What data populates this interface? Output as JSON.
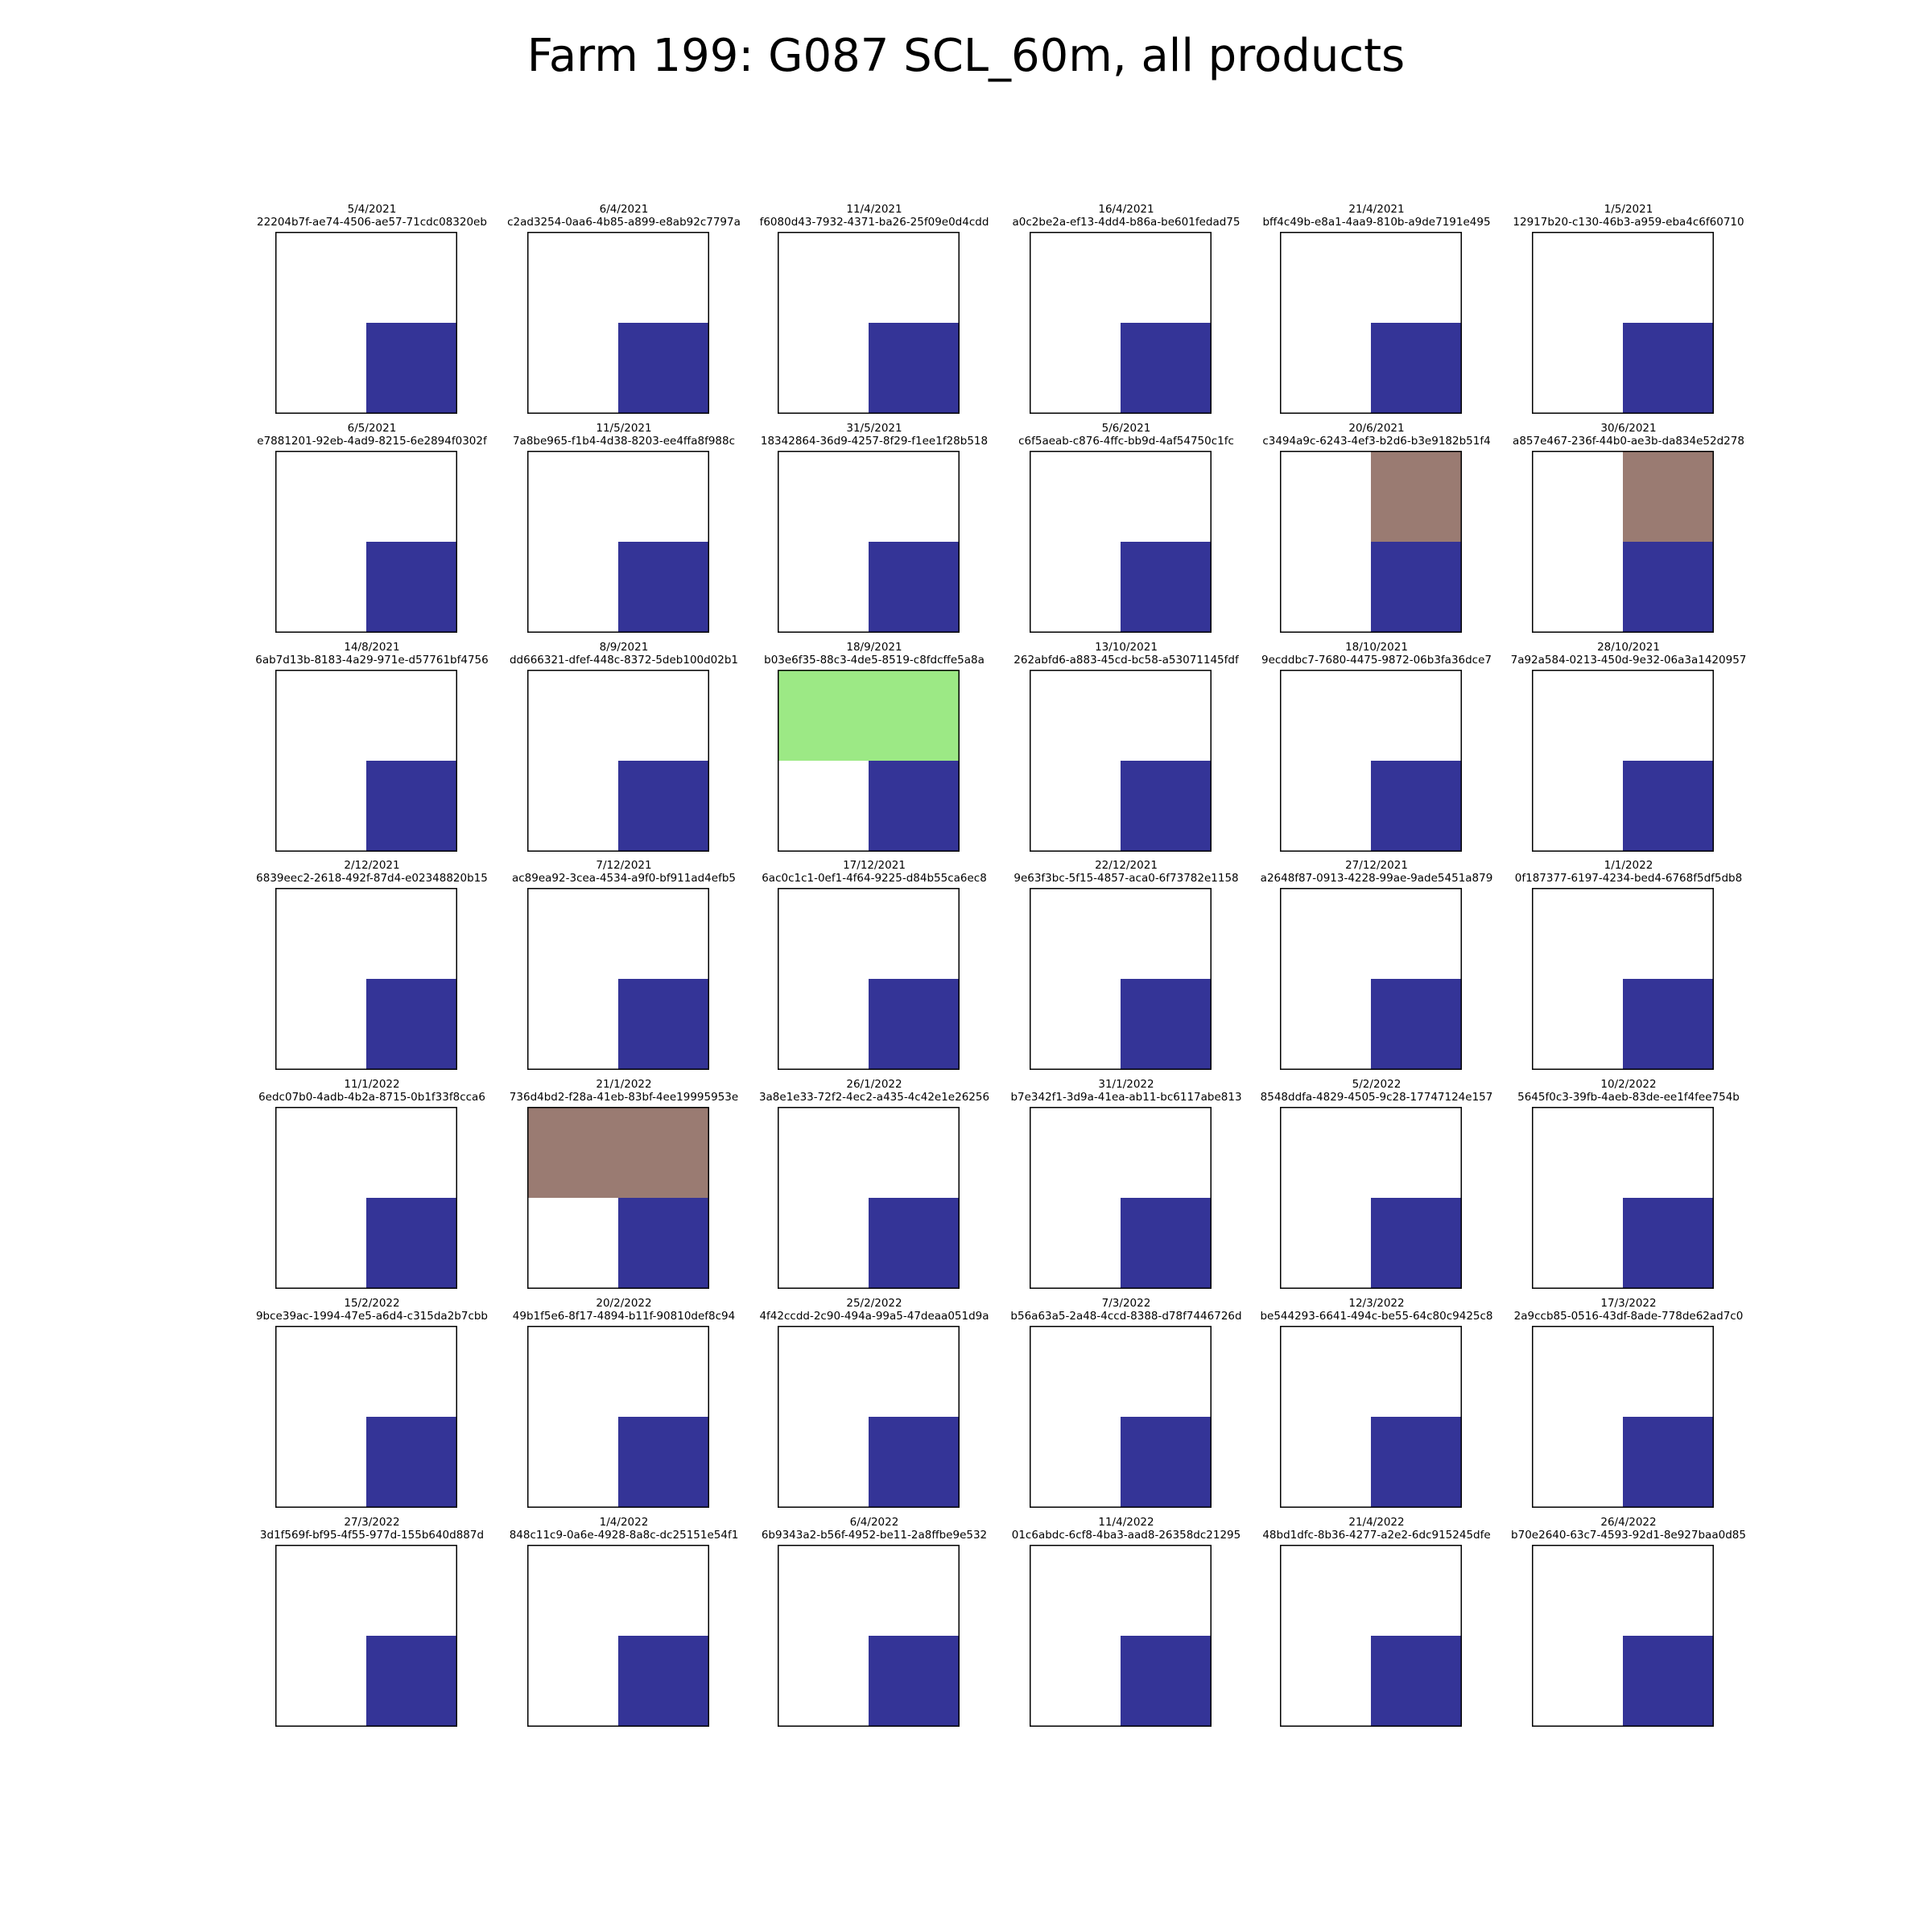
{
  "title": "Farm 199: G087 SCL_60m, all products",
  "legend": {
    "colors": {
      "water": "#343497",
      "bare_soil": "#9a7b72",
      "vegetation": "#9ce985",
      "unfilled": "#ffffff"
    }
  },
  "chart_data": {
    "type": "heatmap",
    "grid_rows": 2,
    "grid_cols": 2,
    "panels": [
      {
        "date": "5/4/2021",
        "id": "22204b7f-ae74-4506-ae57-71cdc08320eb",
        "cells": [
          [
            "none",
            "none"
          ],
          [
            "none",
            "water"
          ]
        ]
      },
      {
        "date": "6/4/2021",
        "id": "c2ad3254-0aa6-4b85-a899-e8ab92c7797a",
        "cells": [
          [
            "none",
            "none"
          ],
          [
            "none",
            "water"
          ]
        ]
      },
      {
        "date": "11/4/2021",
        "id": "f6080d43-7932-4371-ba26-25f09e0d4cdd",
        "cells": [
          [
            "none",
            "none"
          ],
          [
            "none",
            "water"
          ]
        ]
      },
      {
        "date": "16/4/2021",
        "id": "a0c2be2a-ef13-4dd4-b86a-be601fedad75",
        "cells": [
          [
            "none",
            "none"
          ],
          [
            "none",
            "water"
          ]
        ]
      },
      {
        "date": "21/4/2021",
        "id": "bff4c49b-e8a1-4aa9-810b-a9de7191e495",
        "cells": [
          [
            "none",
            "none"
          ],
          [
            "none",
            "water"
          ]
        ]
      },
      {
        "date": "1/5/2021",
        "id": "12917b20-c130-46b3-a959-eba4c6f60710",
        "cells": [
          [
            "none",
            "none"
          ],
          [
            "none",
            "water"
          ]
        ]
      },
      {
        "date": "6/5/2021",
        "id": "e7881201-92eb-4ad9-8215-6e2894f0302f",
        "cells": [
          [
            "none",
            "none"
          ],
          [
            "none",
            "water"
          ]
        ]
      },
      {
        "date": "11/5/2021",
        "id": "7a8be965-f1b4-4d38-8203-ee4ffa8f988c",
        "cells": [
          [
            "none",
            "none"
          ],
          [
            "none",
            "water"
          ]
        ]
      },
      {
        "date": "31/5/2021",
        "id": "18342864-36d9-4257-8f29-f1ee1f28b518",
        "cells": [
          [
            "none",
            "none"
          ],
          [
            "none",
            "water"
          ]
        ]
      },
      {
        "date": "5/6/2021",
        "id": "c6f5aeab-c876-4ffc-bb9d-4af54750c1fc",
        "cells": [
          [
            "none",
            "none"
          ],
          [
            "none",
            "water"
          ]
        ]
      },
      {
        "date": "20/6/2021",
        "id": "c3494a9c-6243-4ef3-b2d6-b3e9182b51f4",
        "cells": [
          [
            "none",
            "bare_soil"
          ],
          [
            "none",
            "water"
          ]
        ]
      },
      {
        "date": "30/6/2021",
        "id": "a857e467-236f-44b0-ae3b-da834e52d278",
        "cells": [
          [
            "none",
            "bare_soil"
          ],
          [
            "none",
            "water"
          ]
        ]
      },
      {
        "date": "14/8/2021",
        "id": "6ab7d13b-8183-4a29-971e-d57761bf4756",
        "cells": [
          [
            "none",
            "none"
          ],
          [
            "none",
            "water"
          ]
        ]
      },
      {
        "date": "8/9/2021",
        "id": "dd666321-dfef-448c-8372-5deb100d02b1",
        "cells": [
          [
            "none",
            "none"
          ],
          [
            "none",
            "water"
          ]
        ]
      },
      {
        "date": "18/9/2021",
        "id": "b03e6f35-88c3-4de5-8519-c8fdcffe5a8a",
        "cells": [
          [
            "vegetation",
            "vegetation"
          ],
          [
            "none",
            "water"
          ]
        ]
      },
      {
        "date": "13/10/2021",
        "id": "262abfd6-a883-45cd-bc58-a53071145fdf",
        "cells": [
          [
            "none",
            "none"
          ],
          [
            "none",
            "water"
          ]
        ]
      },
      {
        "date": "18/10/2021",
        "id": "9ecddbc7-7680-4475-9872-06b3fa36dce7",
        "cells": [
          [
            "none",
            "none"
          ],
          [
            "none",
            "water"
          ]
        ]
      },
      {
        "date": "28/10/2021",
        "id": "7a92a584-0213-450d-9e32-06a3a1420957",
        "cells": [
          [
            "none",
            "none"
          ],
          [
            "none",
            "water"
          ]
        ]
      },
      {
        "date": "2/12/2021",
        "id": "6839eec2-2618-492f-87d4-e02348820b15",
        "cells": [
          [
            "none",
            "none"
          ],
          [
            "none",
            "water"
          ]
        ]
      },
      {
        "date": "7/12/2021",
        "id": "ac89ea92-3cea-4534-a9f0-bf911ad4efb5",
        "cells": [
          [
            "none",
            "none"
          ],
          [
            "none",
            "water"
          ]
        ]
      },
      {
        "date": "17/12/2021",
        "id": "6ac0c1c1-0ef1-4f64-9225-d84b55ca6ec8",
        "cells": [
          [
            "none",
            "none"
          ],
          [
            "none",
            "water"
          ]
        ]
      },
      {
        "date": "22/12/2021",
        "id": "9e63f3bc-5f15-4857-aca0-6f73782e1158",
        "cells": [
          [
            "none",
            "none"
          ],
          [
            "none",
            "water"
          ]
        ]
      },
      {
        "date": "27/12/2021",
        "id": "a2648f87-0913-4228-99ae-9ade5451a879",
        "cells": [
          [
            "none",
            "none"
          ],
          [
            "none",
            "water"
          ]
        ]
      },
      {
        "date": "1/1/2022",
        "id": "0f187377-6197-4234-bed4-6768f5df5db8",
        "cells": [
          [
            "none",
            "none"
          ],
          [
            "none",
            "water"
          ]
        ]
      },
      {
        "date": "11/1/2022",
        "id": "6edc07b0-4adb-4b2a-8715-0b1f33f8cca6",
        "cells": [
          [
            "none",
            "none"
          ],
          [
            "none",
            "water"
          ]
        ]
      },
      {
        "date": "21/1/2022",
        "id": "736d4bd2-f28a-41eb-83bf-4ee19995953e",
        "cells": [
          [
            "bare_soil",
            "bare_soil"
          ],
          [
            "none",
            "water"
          ]
        ]
      },
      {
        "date": "26/1/2022",
        "id": "3a8e1e33-72f2-4ec2-a435-4c42e1e26256",
        "cells": [
          [
            "none",
            "none"
          ],
          [
            "none",
            "water"
          ]
        ]
      },
      {
        "date": "31/1/2022",
        "id": "b7e342f1-3d9a-41ea-ab11-bc6117abe813",
        "cells": [
          [
            "none",
            "none"
          ],
          [
            "none",
            "water"
          ]
        ]
      },
      {
        "date": "5/2/2022",
        "id": "8548ddfa-4829-4505-9c28-17747124e157",
        "cells": [
          [
            "none",
            "none"
          ],
          [
            "none",
            "water"
          ]
        ]
      },
      {
        "date": "10/2/2022",
        "id": "5645f0c3-39fb-4aeb-83de-ee1f4fee754b",
        "cells": [
          [
            "none",
            "none"
          ],
          [
            "none",
            "water"
          ]
        ]
      },
      {
        "date": "15/2/2022",
        "id": "9bce39ac-1994-47e5-a6d4-c315da2b7cbb",
        "cells": [
          [
            "none",
            "none"
          ],
          [
            "none",
            "water"
          ]
        ]
      },
      {
        "date": "20/2/2022",
        "id": "49b1f5e6-8f17-4894-b11f-90810def8c94",
        "cells": [
          [
            "none",
            "none"
          ],
          [
            "none",
            "water"
          ]
        ]
      },
      {
        "date": "25/2/2022",
        "id": "4f42ccdd-2c90-494a-99a5-47deaa051d9a",
        "cells": [
          [
            "none",
            "none"
          ],
          [
            "none",
            "water"
          ]
        ]
      },
      {
        "date": "7/3/2022",
        "id": "b56a63a5-2a48-4ccd-8388-d78f7446726d",
        "cells": [
          [
            "none",
            "none"
          ],
          [
            "none",
            "water"
          ]
        ]
      },
      {
        "date": "12/3/2022",
        "id": "be544293-6641-494c-be55-64c80c9425c8",
        "cells": [
          [
            "none",
            "none"
          ],
          [
            "none",
            "water"
          ]
        ]
      },
      {
        "date": "17/3/2022",
        "id": "2a9ccb85-0516-43df-8ade-778de62ad7c0",
        "cells": [
          [
            "none",
            "none"
          ],
          [
            "none",
            "water"
          ]
        ]
      },
      {
        "date": "27/3/2022",
        "id": "3d1f569f-bf95-4f55-977d-155b640d887d",
        "cells": [
          [
            "none",
            "none"
          ],
          [
            "none",
            "water"
          ]
        ]
      },
      {
        "date": "1/4/2022",
        "id": "848c11c9-0a6e-4928-8a8c-dc25151e54f1",
        "cells": [
          [
            "none",
            "none"
          ],
          [
            "none",
            "water"
          ]
        ]
      },
      {
        "date": "6/4/2022",
        "id": "6b9343a2-b56f-4952-be11-2a8ffbe9e532",
        "cells": [
          [
            "none",
            "none"
          ],
          [
            "none",
            "water"
          ]
        ]
      },
      {
        "date": "11/4/2022",
        "id": "01c6abdc-6cf8-4ba3-aad8-26358dc21295",
        "cells": [
          [
            "none",
            "none"
          ],
          [
            "none",
            "water"
          ]
        ]
      },
      {
        "date": "21/4/2022",
        "id": "48bd1dfc-8b36-4277-a2e2-6dc915245dfe",
        "cells": [
          [
            "none",
            "none"
          ],
          [
            "none",
            "water"
          ]
        ]
      },
      {
        "date": "26/4/2022",
        "id": "b70e2640-63c7-4593-92d1-8e927baa0d85",
        "cells": [
          [
            "none",
            "none"
          ],
          [
            "none",
            "water"
          ]
        ]
      }
    ]
  }
}
